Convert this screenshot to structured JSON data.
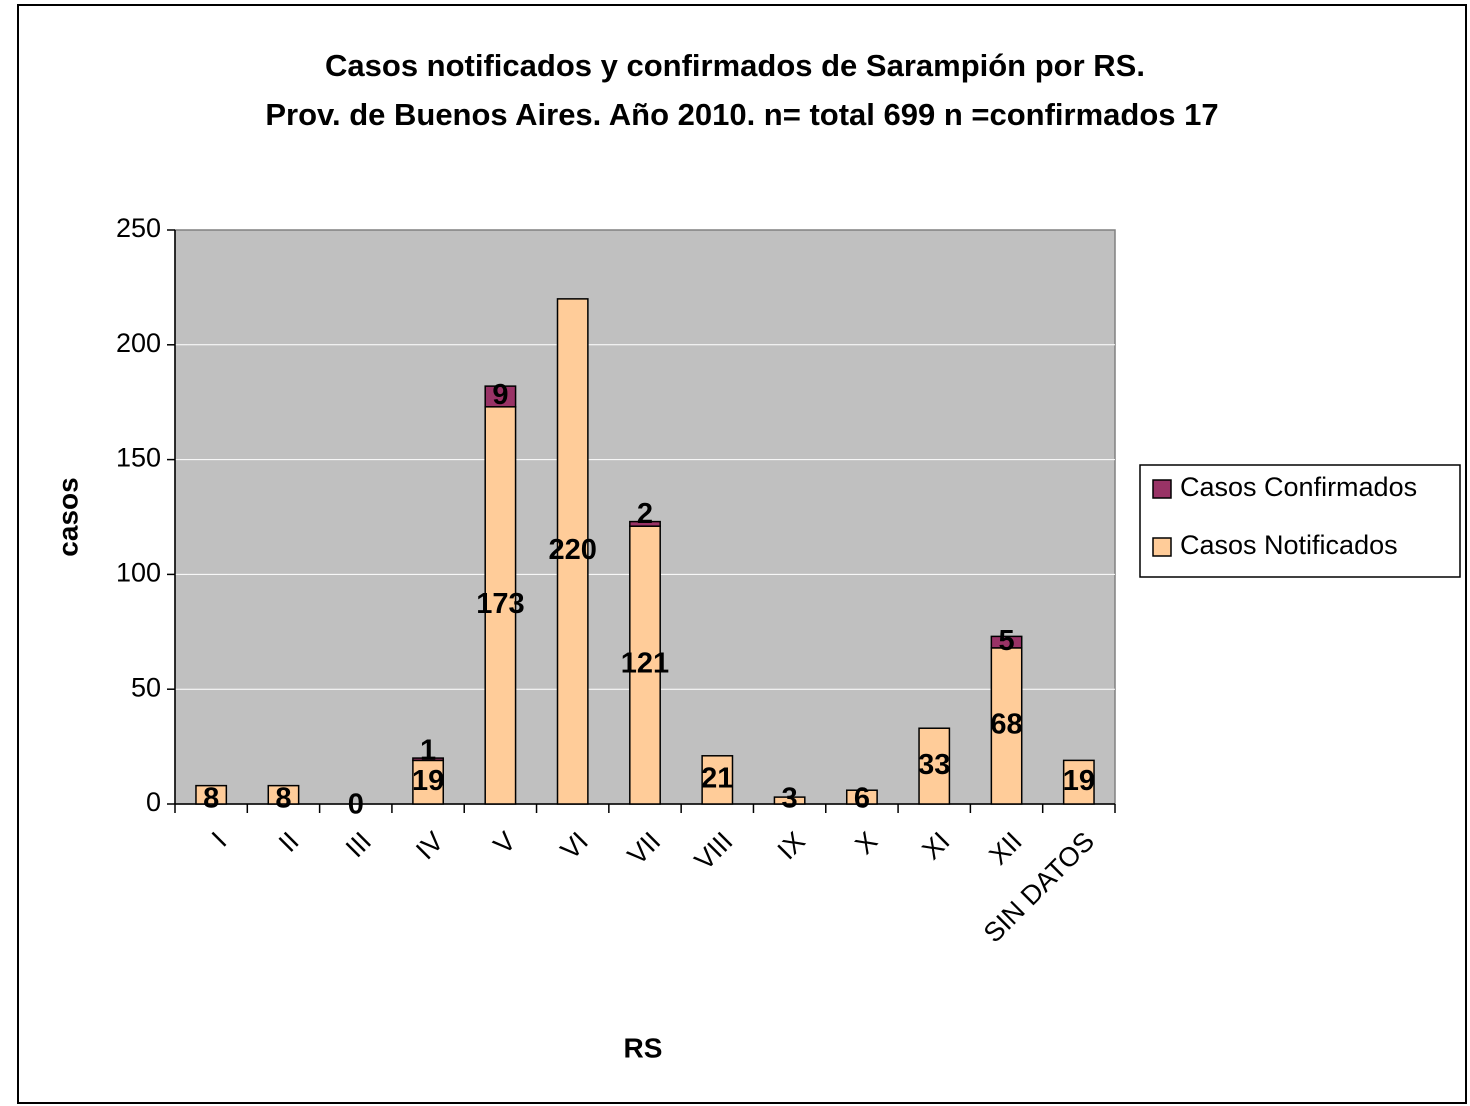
{
  "chart_data": {
    "type": "bar",
    "stacked": true,
    "title": "Casos notificados y confirmados de Sarampión por RS.",
    "subtitle": "Prov. de Buenos Aires. Año 2010. n= total 699  n =confirmados 17",
    "x_label": "RS",
    "y_label": "casos",
    "categories": [
      "I",
      "II",
      "III",
      "IV",
      "V",
      "VI",
      "VII",
      "VIII",
      "IX",
      "X",
      "XI",
      "XII",
      "SIN DATOS"
    ],
    "series": [
      {
        "name": "Casos Notificados",
        "color": "#ffcc99",
        "values": [
          8,
          8,
          0,
          19,
          173,
          220,
          121,
          21,
          3,
          6,
          33,
          68,
          19
        ]
      },
      {
        "name": "Casos Confirmados",
        "color": "#993366",
        "values": [
          null,
          null,
          null,
          1,
          9,
          null,
          2,
          null,
          null,
          null,
          null,
          5,
          null
        ]
      }
    ],
    "ylim": [
      0,
      250
    ],
    "yticks": [
      0,
      50,
      100,
      150,
      200,
      250
    ],
    "grid": true,
    "plot_background": "#c0c0c0",
    "legend": "right"
  }
}
